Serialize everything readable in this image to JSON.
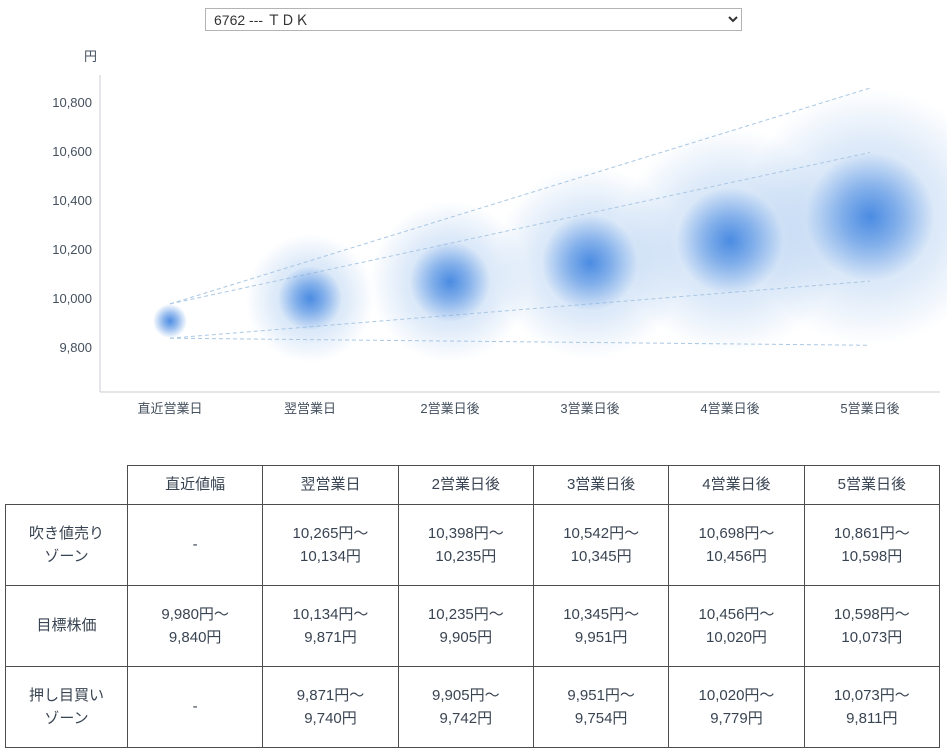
{
  "dropdown": {
    "value": "6762 --- ＴＤＫ"
  },
  "chart_data": {
    "type": "bubble",
    "title": "",
    "unit_label": "円",
    "categories": [
      "直近営業日",
      "翌営業日",
      "2営業日後",
      "3営業日後",
      "4営業日後",
      "5営業日後"
    ],
    "y_ticks": [
      10800,
      10600,
      10400,
      10200,
      10000,
      9800
    ],
    "ylim": [
      9700,
      10900
    ],
    "grid": false,
    "legend": "none",
    "colors": {
      "bubble_core": "#3f84e0",
      "bubble_halo": "#a9c9ef",
      "fan_line": "#aac7e4",
      "axis": "#c9ced4",
      "text": "#44505e"
    },
    "series": [
      {
        "name": "吹き値売りゾーン",
        "role": "upper_zone",
        "ranges": [
          null,
          [
            10134,
            10265
          ],
          [
            10235,
            10398
          ],
          [
            10345,
            10542
          ],
          [
            10456,
            10698
          ],
          [
            10598,
            10861
          ]
        ]
      },
      {
        "name": "目標株価",
        "role": "target",
        "ranges": [
          [
            9840,
            9980
          ],
          [
            9871,
            10134
          ],
          [
            9905,
            10235
          ],
          [
            9951,
            10345
          ],
          [
            10020,
            10456
          ],
          [
            10073,
            10598
          ]
        ]
      },
      {
        "name": "押し目買いゾーン",
        "role": "lower_zone",
        "ranges": [
          null,
          [
            9740,
            9871
          ],
          [
            9742,
            9905
          ],
          [
            9754,
            9951
          ],
          [
            9779,
            10020
          ],
          [
            9811,
            10073
          ]
        ]
      }
    ]
  },
  "table": {
    "corner": "",
    "headers": [
      "直近値幅",
      "翌営業日",
      "2営業日後",
      "3営業日後",
      "4営業日後",
      "5営業日後"
    ],
    "rows": [
      {
        "label": "吹き値売り\nゾーン",
        "cells": [
          "-",
          "10,265円～\n10,134円",
          "10,398円～\n10,235円",
          "10,542円～\n10,345円",
          "10,698円～\n10,456円",
          "10,861円～\n10,598円"
        ]
      },
      {
        "label": "目標株価",
        "cells": [
          "9,980円～\n9,840円",
          "10,134円～\n9,871円",
          "10,235円～\n9,905円",
          "10,345円～\n9,951円",
          "10,456円～\n10,020円",
          "10,598円～\n10,073円"
        ]
      },
      {
        "label": "押し目買い\nゾーン",
        "cells": [
          "-",
          "9,871円～\n9,740円",
          "9,905円～\n9,742円",
          "9,951円～\n9,754円",
          "10,020円～\n9,779円",
          "10,073円～\n9,811円"
        ]
      }
    ]
  }
}
